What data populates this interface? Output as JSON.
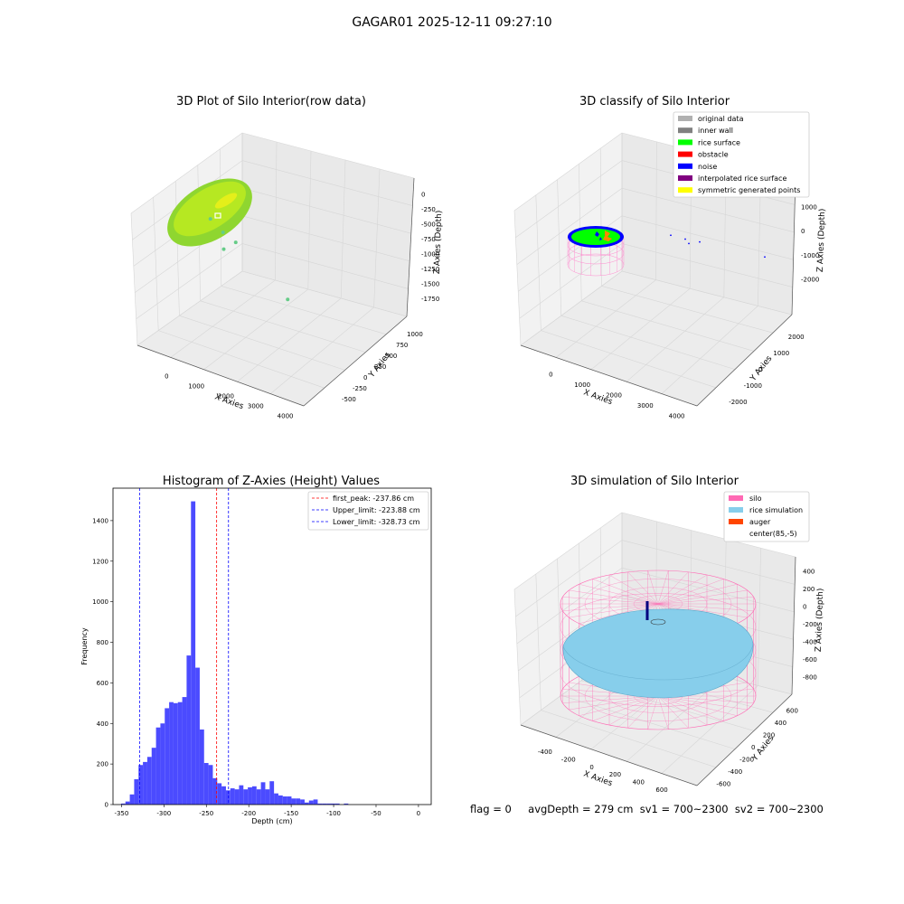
{
  "figure_title": "GAGAR01 2025-12-11 09:27:10",
  "footer": {
    "flag": "flag = 0",
    "stats": "avgDepth = 279 cm  sv1 = 700~2300  sv2 = 700~2300"
  },
  "colors": {
    "raw_points": "#9acd32",
    "original_data": "#b0b0b0",
    "inner_wall": "#808080",
    "rice_surface": "#00ff00",
    "obstacle": "#ff0000",
    "noise": "#0000ff",
    "interpolated": "#800080",
    "symmetric": "#ffff00",
    "silo": "#ff69b4",
    "rice_simulation": "#87ceeb",
    "auger": "#ff4500",
    "hist_bar": "#4b4bff"
  },
  "chart_data": [
    {
      "type": "scatter",
      "title": "3D Plot of Silo Interior(row data)",
      "xlabel": "X Axies",
      "ylabel": "Y Axies",
      "zlabel": "Z Axies (Depth)",
      "x_ticks": [
        "0",
        "1000",
        "2000",
        "3000",
        "4000"
      ],
      "y_ticks": [
        "-500",
        "-250",
        "0",
        "250",
        "500",
        "750",
        "1000"
      ],
      "z_ticks": [
        "0",
        "-250",
        "-500",
        "-750",
        "-1000",
        "-1250",
        "-1500",
        "-1750"
      ],
      "outlier_points": [
        {
          "x": 1300,
          "y": 200,
          "z": -500
        },
        {
          "x": 1700,
          "y": 150,
          "z": -700
        },
        {
          "x": 2100,
          "y": 100,
          "z": -850
        },
        {
          "x": 1800,
          "y": 0,
          "z": -950
        },
        {
          "x": 3900,
          "y": -400,
          "z": -1700
        }
      ]
    },
    {
      "type": "scatter",
      "title": "3D classify of Silo Interior",
      "xlabel": "X Axies",
      "ylabel": "Y Axies",
      "zlabel": "Z Axies (Depth)",
      "x_ticks": [
        "0",
        "1000",
        "2000",
        "3000",
        "4000"
      ],
      "y_ticks": [
        "-2000",
        "-1000",
        "0",
        "1000",
        "2000"
      ],
      "z_ticks": [
        "1000",
        "0",
        "-1000",
        "-2000"
      ],
      "legend": [
        {
          "label": "original data",
          "color": "#b0b0b0"
        },
        {
          "label": "inner wall",
          "color": "#808080"
        },
        {
          "label": "rice surface",
          "color": "#00ff00"
        },
        {
          "label": "obstacle",
          "color": "#ff0000"
        },
        {
          "label": "noise",
          "color": "#0000ff"
        },
        {
          "label": "interpolated rice surface",
          "color": "#800080"
        },
        {
          "label": "symmetric generated points",
          "color": "#ffff00"
        }
      ],
      "legend_loc": "upper right",
      "noise_points": [
        {
          "x": 1300,
          "y": 200,
          "z": -500
        },
        {
          "x": 1700,
          "y": 150,
          "z": -700
        },
        {
          "x": 2100,
          "y": 100,
          "z": -850
        },
        {
          "x": 1800,
          "y": 0,
          "z": -950
        },
        {
          "x": 3900,
          "y": -400,
          "z": -1700
        }
      ]
    },
    {
      "type": "bar",
      "title": "Histogram of Z-Axies (Height) Values",
      "xlabel": "Depth (cm)",
      "ylabel": "Frequency",
      "xlim": [
        -360,
        15
      ],
      "ylim": [
        0,
        1560
      ],
      "x_ticks": [
        -350,
        -300,
        -250,
        -200,
        -150,
        -100,
        -50,
        0
      ],
      "y_ticks": [
        0,
        200,
        400,
        600,
        800,
        1000,
        1200,
        1400
      ],
      "bin_start": -350.5,
      "bin_width": 5.15,
      "values": [
        5,
        15,
        50,
        125,
        195,
        210,
        235,
        280,
        380,
        400,
        475,
        505,
        500,
        505,
        530,
        735,
        1495,
        675,
        370,
        205,
        195,
        130,
        105,
        90,
        70,
        80,
        75,
        95,
        75,
        85,
        90,
        75,
        110,
        75,
        115,
        55,
        45,
        40,
        40,
        30,
        30,
        25,
        10,
        20,
        25,
        5,
        5,
        5,
        5,
        5,
        0,
        5,
        0
      ],
      "lines": [
        {
          "label": "first_peak: -237.86 cm",
          "x": -237.86,
          "color": "#ff0000"
        },
        {
          "label": "Upper_limit: -223.88 cm",
          "x": -223.88,
          "color": "#0000ff"
        },
        {
          "label": "Lower_limit: -328.73 cm",
          "x": -328.73,
          "color": "#0000ff"
        }
      ],
      "legend_loc": "upper right"
    },
    {
      "type": "scatter",
      "title": "3D simulation of Silo Interior",
      "xlabel": "X Axies",
      "ylabel": "Y Axies",
      "zlabel": "Z Axies (Depth)",
      "x_ticks": [
        "-400",
        "-200",
        "0",
        "200",
        "400",
        "600"
      ],
      "y_ticks": [
        "-600",
        "-400",
        "-200",
        "0",
        "200",
        "400",
        "600"
      ],
      "z_ticks": [
        "400",
        "200",
        "0",
        "-200",
        "-400",
        "-600",
        "-800"
      ],
      "legend": [
        {
          "label": "silo",
          "color": "#ff69b4"
        },
        {
          "label": "rice simulation",
          "color": "#87ceeb"
        },
        {
          "label": "auger",
          "color": "#ff4500"
        },
        {
          "label": "center(85,-5)",
          "color": ""
        }
      ],
      "legend_loc": "upper right"
    }
  ]
}
